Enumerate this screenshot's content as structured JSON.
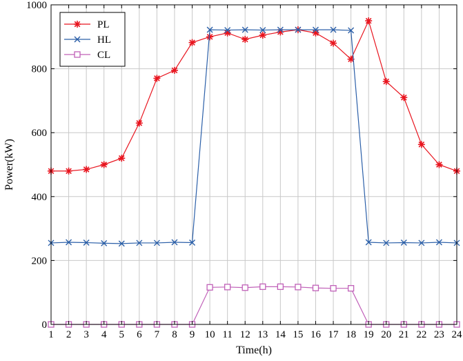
{
  "chart_data": {
    "type": "line",
    "title": "",
    "xlabel": "Time(h)",
    "ylabel": "Power(kW)",
    "x": [
      1,
      2,
      3,
      4,
      5,
      6,
      7,
      8,
      9,
      10,
      11,
      12,
      13,
      14,
      15,
      16,
      17,
      18,
      19,
      20,
      21,
      22,
      23,
      24
    ],
    "xlim": [
      1,
      24
    ],
    "ylim": [
      0,
      1000
    ],
    "yticks": [
      0,
      200,
      400,
      600,
      800,
      1000
    ],
    "grid": true,
    "legend_position": "top-left",
    "series": [
      {
        "name": "PL",
        "color": "#e8141e",
        "marker": "asterisk",
        "values": [
          480,
          480,
          485,
          500,
          520,
          630,
          770,
          795,
          882,
          900,
          912,
          892,
          905,
          915,
          922,
          912,
          880,
          830,
          950,
          760,
          710,
          563,
          500,
          480
        ]
      },
      {
        "name": "HL",
        "color": "#2b5fa8",
        "marker": "x",
        "values": [
          255,
          257,
          256,
          254,
          253,
          255,
          255,
          257,
          256,
          922,
          921,
          922,
          921,
          922,
          922,
          922,
          922,
          920,
          257,
          255,
          256,
          255,
          257,
          255
        ]
      },
      {
        "name": "CL",
        "color": "#c060b8",
        "marker": "square",
        "values": [
          0,
          0,
          0,
          0,
          0,
          0,
          0,
          0,
          0,
          116,
          117,
          115,
          118,
          118,
          117,
          114,
          113,
          113,
          0,
          0,
          0,
          0,
          0,
          0
        ]
      }
    ]
  }
}
